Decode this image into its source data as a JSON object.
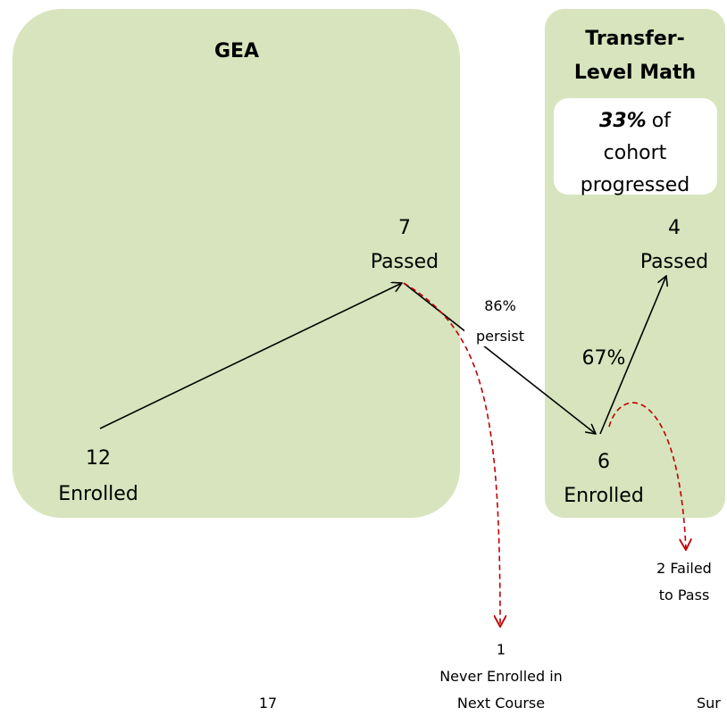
{
  "boxes": [
    {
      "title_lines": [
        "GEA"
      ]
    },
    {
      "title_lines": [
        "Transfer-",
        "Level Math"
      ]
    }
  ],
  "callout": {
    "emphasis": "33%",
    "rest": "of",
    "lines": [
      "cohort",
      "progressed"
    ]
  },
  "nodes": [
    {
      "count": 12,
      "label": "Enrolled"
    },
    {
      "count": 7,
      "label": "Passed"
    },
    {
      "count": 6,
      "label": "Enrolled"
    },
    {
      "count": 4,
      "label": "Passed"
    }
  ],
  "edges": [
    {
      "lines": [
        "86%",
        "persist"
      ]
    },
    {
      "lines": [
        "67%"
      ]
    }
  ],
  "outcomes": [
    {
      "lines": [
        "1",
        "Never Enrolled in",
        "Next Course"
      ]
    },
    {
      "lines": [
        "2 Failed",
        "to Pass"
      ]
    }
  ],
  "footer": {
    "page": "17",
    "right": "Sur"
  }
}
